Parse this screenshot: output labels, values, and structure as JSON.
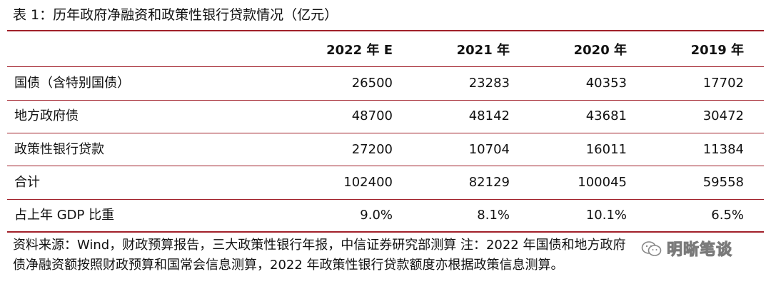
{
  "title": "表 1：历年政府净融资和政策性银行贷款情况（亿元）",
  "headers": [
    "2022 年 E",
    "2021 年",
    "2020 年",
    "2019 年"
  ],
  "rows": [
    {
      "label": "国债（含特别国债）",
      "values": [
        "26500",
        "23283",
        "40353",
        "17702"
      ]
    },
    {
      "label": "地方政府债",
      "values": [
        "48700",
        "48142",
        "43681",
        "30472"
      ]
    },
    {
      "label": "政策性银行贷款",
      "values": [
        "27200",
        "10704",
        "16011",
        "11384"
      ]
    },
    {
      "label": "合计",
      "values": [
        "102400",
        "82129",
        "100045",
        "59558"
      ]
    },
    {
      "label": "占上年 GDP 比重",
      "values": [
        "9.0%",
        "8.1%",
        "10.1%",
        "6.5%"
      ]
    }
  ],
  "source": {
    "line1": "资料来源：Wind，财政预算报告，三大政策性银行年报，中信证券研究部测算  注：2022 年国债和地方政府",
    "line2": "债净融资额按照财政预算和国常会信息测算，2022 年政策性银行贷款额度亦根据政策信息测算。"
  },
  "watermark": {
    "text": "明晰笔谈",
    "icon": "wechat-icon"
  },
  "colors": {
    "rule": "#a1202a",
    "text": "#111111"
  }
}
